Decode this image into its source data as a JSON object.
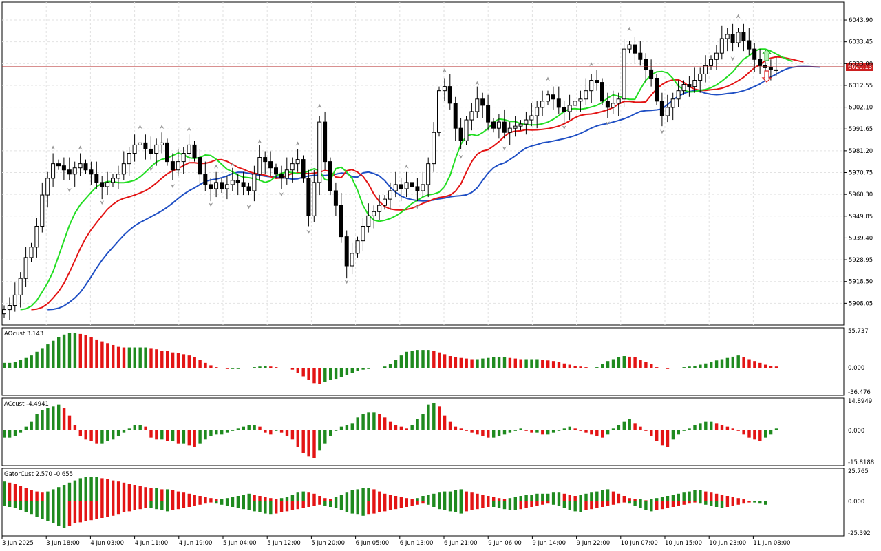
{
  "main": {
    "price_ticks": [
      "6043.90",
      "6033.45",
      "6023.00",
      "6012.55",
      "6002.10",
      "5991.65",
      "5981.20",
      "5970.75",
      "5960.30",
      "5949.85",
      "5939.40",
      "5928.95",
      "5918.50",
      "5908.05"
    ],
    "current_price_label": "6020.13",
    "time_labels": [
      "3 Jun 2025",
      "3 Jun 18:00",
      "4 Jun 03:00",
      "4 Jun 11:00",
      "4 Jun 19:00",
      "5 Jun 04:00",
      "5 Jun 12:00",
      "5 Jun 20:00",
      "6 Jun 05:00",
      "6 Jun 13:00",
      "6 Jun 21:00",
      "9 Jun 06:00",
      "9 Jun 14:00",
      "9 Jun 22:00",
      "10 Jun 07:00",
      "10 Jun 15:00",
      "10 Jun 23:00",
      "11 Jun 08:00"
    ]
  },
  "panes": {
    "ao": {
      "label": "AOcust 3.143",
      "top": "55.737",
      "mid": "0.000",
      "bottom": "-36.476"
    },
    "ac": {
      "label": "ACcust -4.4941",
      "top": "14.8949",
      "mid": "0.000",
      "bottom": "-15.8188"
    },
    "gator": {
      "label": "GatorCust 2.570 -0.655",
      "top": "25.765",
      "mid": "0.000",
      "bottom": "-25.392"
    }
  },
  "chart_data": {
    "type": "candlestick",
    "instrument_price_line": 6020.13,
    "price_axis": {
      "min": 5897.6,
      "max": 6052.5
    },
    "closes": [
      5905,
      5907,
      5912,
      5920,
      5930,
      5935,
      5945,
      5960,
      5968,
      5975,
      5974,
      5972,
      5970,
      5973,
      5975,
      5972,
      5970,
      5966,
      5964,
      5966,
      5968,
      5970,
      5975,
      5980,
      5984,
      5985,
      5982,
      5980,
      5984,
      5985,
      5976,
      5972,
      5976,
      5980,
      5984,
      5978,
      5970,
      5965,
      5963,
      5966,
      5963,
      5965,
      5967,
      5966,
      5964,
      5962,
      5970,
      5978,
      5976,
      5973,
      5970,
      5968,
      5972,
      5975,
      5977,
      5968,
      5950,
      5966,
      5995,
      5976,
      5962,
      5955,
      5940,
      5926,
      5932,
      5938,
      5945,
      5950,
      5952,
      5955,
      5958,
      5962,
      5965,
      5963,
      5966,
      5964,
      5962,
      5965,
      5975,
      5990,
      6010,
      6012,
      6004,
      5992,
      5986,
      5996,
      6000,
      6006,
      6003,
      5995,
      5992,
      5995,
      5990,
      5992,
      5993,
      5994,
      5996,
      5998,
      6002,
      6005,
      6008,
      6006,
      6002,
      6000,
      6003,
      6005,
      6006,
      6010,
      6015,
      6014,
      6005,
      6002,
      6004,
      6006,
      6030,
      6032,
      6028,
      6025,
      6020,
      6016,
      6005,
      5998,
      6002,
      6006,
      6010,
      6013,
      6012,
      6015,
      6018,
      6022,
      6025,
      6028,
      6035,
      6037,
      6033,
      6038,
      6034,
      6030,
      6025,
      6022,
      6021,
      6020,
      6020
    ],
    "alligator": {
      "jaw_color": "#1f4fc4",
      "teeth_color": "#e31414",
      "lips_color": "#22dd22"
    },
    "ao_values": [
      8,
      8,
      10,
      13,
      16,
      20,
      26,
      32,
      38,
      44,
      50,
      54,
      56,
      56,
      55,
      53,
      50,
      46,
      43,
      40,
      37,
      34,
      33,
      33,
      33,
      33,
      33,
      32,
      30,
      28,
      27,
      25,
      24,
      22,
      20,
      17,
      13,
      8,
      4,
      1,
      -1,
      -2,
      -2,
      -2,
      -1,
      0,
      1,
      2,
      3,
      2,
      1,
      0,
      -1,
      -3,
      -8,
      -14,
      -20,
      -25,
      -26,
      -23,
      -20,
      -18,
      -15,
      -12,
      -8,
      -5,
      -3,
      -2,
      -1,
      0,
      2,
      6,
      13,
      20,
      26,
      28,
      29,
      29,
      29,
      27,
      25,
      22,
      19,
      17,
      16,
      15,
      14,
      14,
      15,
      16,
      17,
      17,
      17,
      16,
      15,
      14,
      14,
      14,
      14,
      13,
      12,
      11,
      9,
      7,
      5,
      3,
      2,
      1,
      0,
      1,
      6,
      11,
      14,
      17,
      19,
      18,
      17,
      13,
      9,
      6,
      1,
      -1,
      -2,
      -1,
      0,
      1,
      2,
      3,
      5,
      7,
      9,
      12,
      14,
      16,
      18,
      20,
      17,
      14,
      11,
      8,
      5,
      3,
      2
    ],
    "ac_values": [
      -4,
      -4,
      -3,
      -1,
      2,
      5,
      9,
      11,
      12,
      13,
      14,
      12,
      8,
      3,
      -3,
      -5,
      -6,
      -7,
      -7,
      -6,
      -5,
      -3,
      -1,
      1,
      3,
      3,
      2,
      -4,
      -5,
      -5,
      -6,
      -6,
      -7,
      -7,
      -8,
      -9,
      -7,
      -5,
      -3,
      -2,
      -2,
      -1,
      0,
      1,
      2,
      3,
      3,
      2,
      -1,
      -2,
      0,
      -1,
      -3,
      -5,
      -9,
      -12,
      -14,
      -15,
      -11,
      -7,
      -3,
      0,
      2,
      3,
      4,
      7,
      9,
      10,
      10,
      9,
      7,
      5,
      3,
      2,
      1,
      3,
      6,
      9,
      14,
      15,
      13,
      8,
      5,
      2,
      1,
      0,
      -1,
      -2,
      -3,
      -4,
      -4,
      -3,
      -2,
      -1,
      0,
      1,
      0,
      -1,
      -1,
      -2,
      -2,
      -1,
      0,
      1,
      2,
      1,
      0,
      -1,
      -2,
      -3,
      -4,
      -2,
      1,
      3,
      5,
      6,
      4,
      2,
      0,
      -3,
      -6,
      -8,
      -9,
      -5,
      -2,
      0,
      1,
      3,
      4,
      5,
      5,
      4,
      3,
      2,
      1,
      0,
      -2,
      -4,
      -5,
      -6,
      -4,
      -2,
      1
    ],
    "gator_upper": [
      18,
      17,
      16,
      14,
      12,
      10,
      9,
      8,
      9,
      11,
      13,
      15,
      17,
      19,
      21,
      22,
      22,
      22,
      21,
      20,
      19,
      18,
      17,
      16,
      15,
      14,
      13,
      12,
      12,
      11,
      11,
      10,
      9,
      8,
      7,
      6,
      5,
      4,
      3,
      2,
      2,
      3,
      4,
      5,
      6,
      7,
      6,
      5,
      4,
      3,
      2,
      3,
      4,
      6,
      8,
      9,
      8,
      7,
      5,
      3,
      2,
      4,
      6,
      8,
      10,
      11,
      12,
      12,
      11,
      9,
      7,
      6,
      5,
      4,
      3,
      2,
      3,
      5,
      6,
      7,
      8,
      9,
      9,
      10,
      11,
      9,
      8,
      7,
      6,
      5,
      4,
      3,
      2,
      3,
      4,
      5,
      6,
      6,
      7,
      7,
      7,
      8,
      8,
      7,
      6,
      5,
      6,
      7,
      8,
      9,
      10,
      11,
      9,
      7,
      5,
      3,
      2,
      2,
      1,
      2,
      3,
      4,
      5,
      6,
      7,
      8,
      9,
      10,
      10,
      9,
      8,
      7,
      6,
      5,
      4,
      3,
      2
    ],
    "gator_lower": [
      -4,
      -5,
      -6,
      -8,
      -10,
      -12,
      -14,
      -16,
      -18,
      -20,
      -22,
      -24,
      -22,
      -20,
      -19,
      -18,
      -17,
      -16,
      -15,
      -14,
      -13,
      -12,
      -10,
      -9,
      -8,
      -7,
      -6,
      -6,
      -7,
      -8,
      -9,
      -8,
      -7,
      -6,
      -5,
      -4,
      -3,
      -2,
      -1,
      -2,
      -3,
      -4,
      -5,
      -6,
      -7,
      -8,
      -9,
      -10,
      -11,
      -12,
      -11,
      -10,
      -9,
      -8,
      -7,
      -6,
      -5,
      -4,
      -3,
      -4,
      -5,
      -6,
      -8,
      -10,
      -11,
      -12,
      -13,
      -12,
      -11,
      -10,
      -9,
      -8,
      -7,
      -6,
      -5,
      -4,
      -3,
      -2,
      -3,
      -5,
      -7,
      -8,
      -9,
      -10,
      -11,
      -9,
      -8,
      -7,
      -6,
      -5,
      -5,
      -6,
      -7,
      -8,
      -8,
      -7,
      -6,
      -5,
      -4,
      -3,
      -2,
      -3,
      -4,
      -6,
      -8,
      -9,
      -10,
      -8,
      -7,
      -6,
      -5,
      -4,
      -3,
      -2,
      -1,
      -2,
      -4,
      -6,
      -8,
      -9,
      -8,
      -7,
      -6,
      -5,
      -4,
      -3,
      -2,
      -1,
      -2,
      -3,
      -4,
      -5,
      -6,
      -5,
      -4,
      -3,
      -2,
      -1,
      -1,
      -2,
      -3
    ]
  }
}
